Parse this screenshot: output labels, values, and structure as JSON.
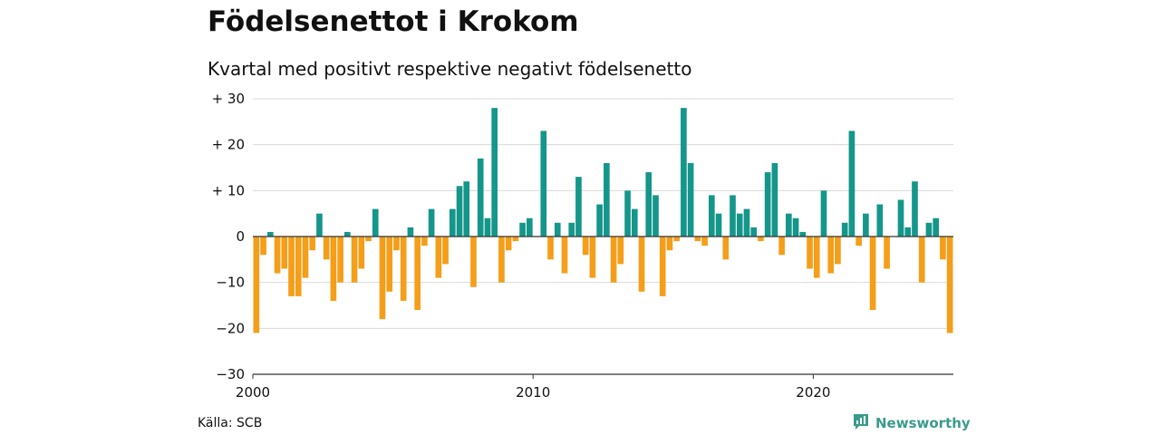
{
  "header": {
    "title": "Födelsenettot i Krokom",
    "subtitle": "Kvartal med positivt respektive negativt födelsenetto"
  },
  "footer": {
    "source": "Källa: SCB",
    "brand": "Newsworthy",
    "brand_icon": "newsworthy-logo-icon"
  },
  "colors": {
    "positive": "#15968a",
    "negative": "#f59e19",
    "grid": "#d9d9d9",
    "brand": "#3a9b8c"
  },
  "chart_data": {
    "type": "bar",
    "title": "Födelsenettot i Krokom",
    "subtitle": "Kvartal med positivt respektive negativt födelsenetto",
    "xlabel": "",
    "ylabel": "",
    "ylim": [
      -30,
      30
    ],
    "yticks": [
      30,
      20,
      10,
      0,
      -10,
      -20,
      -30
    ],
    "ytick_labels": [
      "+ 30",
      "+ 20",
      "+ 10",
      "0",
      "−10",
      "−20",
      "−30"
    ],
    "xticks": [
      2000,
      2010,
      2020
    ],
    "xtick_labels": [
      "2000",
      "2010",
      "2020"
    ],
    "x_start": "2000 Q1",
    "grid": true,
    "legend": "none",
    "values": [
      -21,
      -4,
      1,
      -8,
      -7,
      -13,
      -13,
      -9,
      -3,
      5,
      -5,
      -14,
      -10,
      1,
      -10,
      -7,
      -1,
      6,
      -18,
      -12,
      -3,
      -14,
      2,
      -16,
      -2,
      6,
      -9,
      -6,
      6,
      11,
      12,
      -11,
      17,
      4,
      28,
      -10,
      -3,
      -1,
      3,
      4,
      0,
      23,
      -5,
      3,
      -8,
      3,
      13,
      -4,
      -9,
      7,
      16,
      -10,
      -6,
      10,
      6,
      -12,
      14,
      9,
      -13,
      -3,
      -1,
      28,
      16,
      -1,
      -2,
      9,
      5,
      -5,
      9,
      5,
      6,
      2,
      -1,
      14,
      16,
      -4,
      5,
      4,
      1,
      -7,
      -9,
      10,
      -8,
      -6,
      3,
      23,
      -2,
      5,
      -16,
      7,
      -7,
      0,
      8,
      2,
      12,
      -10,
      3,
      4,
      -5,
      -21
    ]
  }
}
